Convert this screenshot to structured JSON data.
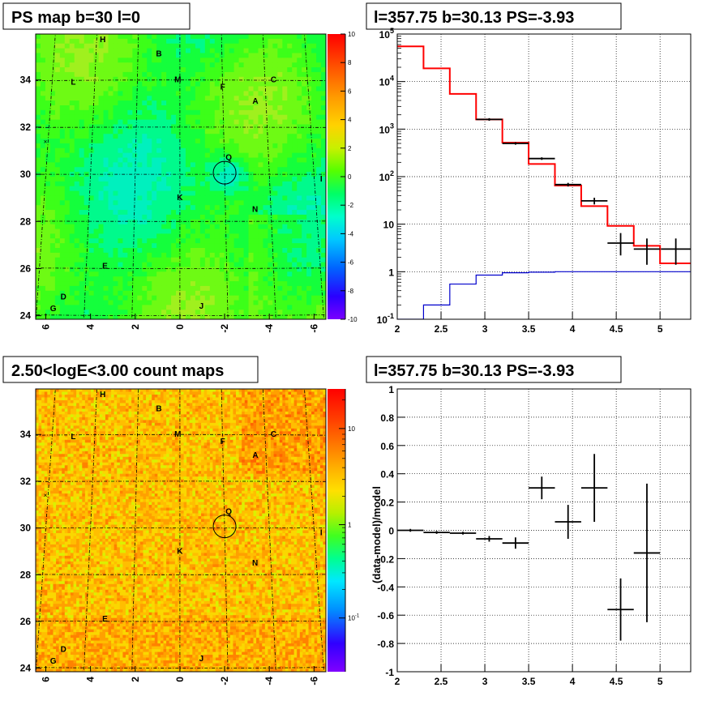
{
  "chart_data": [
    {
      "panel": "top-left",
      "type": "heatmap",
      "title": "PS map b=30 l=0",
      "x_ticks": [
        "6",
        "4",
        "2",
        "0",
        "-2",
        "-4",
        "-6"
      ],
      "y_ticks": [
        "24",
        "26",
        "28",
        "30",
        "32",
        "34"
      ],
      "colorbar_ticks": [
        "10",
        "8",
        "6",
        "4",
        "2",
        "0",
        "-2",
        "-4",
        "-6",
        "-8",
        "-10"
      ],
      "zlim": [
        -10,
        10
      ],
      "sources": [
        {
          "label": "H",
          "l": 3.7,
          "b": 35.6
        },
        {
          "label": "B",
          "l": 1.0,
          "b": 35.0
        },
        {
          "label": "L",
          "l": 5.0,
          "b": 33.8
        },
        {
          "label": "M",
          "l": 0.1,
          "b": 33.9
        },
        {
          "label": "F",
          "l": -2.0,
          "b": 33.6
        },
        {
          "label": "C",
          "l": -4.4,
          "b": 33.9
        },
        {
          "label": "A",
          "l": -3.5,
          "b": 33.0
        },
        {
          "label": "Q",
          "l": -2.2,
          "b": 30.6
        },
        {
          "label": "I",
          "l": -6.3,
          "b": 29.7
        },
        {
          "label": "K",
          "l": 0.0,
          "b": 28.9
        },
        {
          "label": "N",
          "l": -3.3,
          "b": 28.4
        },
        {
          "label": "E",
          "l": 3.2,
          "b": 26.0
        },
        {
          "label": "D",
          "l": 4.9,
          "b": 24.7
        },
        {
          "label": "J",
          "l": -0.9,
          "b": 24.3
        },
        {
          "label": "G",
          "l": 5.3,
          "b": 24.2
        }
      ],
      "circle": {
        "l": -2.0,
        "b": 30.0,
        "r": 0.5
      }
    },
    {
      "panel": "top-right",
      "type": "line",
      "title": "l=357.75 b=30.13 PS=-3.93",
      "x_ticks": [
        "2",
        "2.5",
        "3",
        "3.5",
        "4",
        "4.5",
        "5"
      ],
      "y_ticks": [
        "10^-1",
        "1",
        "10",
        "10^2",
        "10^3",
        "10^4",
        "10^5"
      ],
      "xlim": [
        2,
        5.35
      ],
      "ylim": [
        0.1,
        100000
      ],
      "y_scale": "log",
      "edges": [
        2.0,
        2.3,
        2.6,
        2.9,
        3.2,
        3.5,
        3.8,
        4.1,
        4.4,
        4.7,
        5.0,
        5.35
      ],
      "series": [
        {
          "name": "",
          "color": "#ff0000",
          "type": "step",
          "values": [
            55000,
            19000,
            5500,
            1600,
            520,
            185,
            65,
            24,
            9.2,
            3.5,
            1.5
          ]
        },
        {
          "name": "",
          "color": "#0000cc",
          "type": "step",
          "values": [
            0.1,
            0.2,
            0.55,
            0.85,
            0.95,
            0.98,
            1.0,
            1.0,
            1.0,
            1.0,
            1.0
          ]
        },
        {
          "name": "",
          "color": "#000000",
          "type": "errorbar",
          "x": [
            3.05,
            3.35,
            3.65,
            3.95,
            4.25,
            4.55,
            4.85,
            5.18
          ],
          "xerr": [
            0.15,
            0.15,
            0.15,
            0.15,
            0.15,
            0.15,
            0.15,
            0.17
          ],
          "y": [
            1600,
            500,
            240,
            68,
            31,
            4.0,
            3.0,
            3.0
          ],
          "ylo": [
            1500,
            470,
            225,
            62,
            26,
            2.2,
            1.4,
            1.4
          ],
          "yhi": [
            1700,
            530,
            255,
            74,
            36,
            6.5,
            5.0,
            5.0
          ]
        }
      ]
    },
    {
      "panel": "bottom-left",
      "type": "heatmap",
      "title": "2.50<logE<3.00 count maps",
      "x_ticks": [
        "6",
        "4",
        "2",
        "0",
        "-2",
        "-4",
        "-6"
      ],
      "y_ticks": [
        "24",
        "26",
        "28",
        "30",
        "32",
        "34"
      ],
      "colorbar_ticks": [
        "10",
        "1",
        "10^-1"
      ],
      "z_scale": "log"
    },
    {
      "panel": "bottom-right",
      "type": "scatter",
      "title": "l=357.75 b=30.13 PS=-3.93",
      "ylabel": "(data-model)/model",
      "x_ticks": [
        "2",
        "2.5",
        "3",
        "3.5",
        "4",
        "4.5",
        "5"
      ],
      "y_ticks": [
        "-1",
        "-0.8",
        "-0.6",
        "-0.4",
        "-0.2",
        "0",
        "0.2",
        "0.4",
        "0.6",
        "0.8",
        "1"
      ],
      "xlim": [
        2,
        5.35
      ],
      "ylim": [
        -1,
        1
      ],
      "points": [
        {
          "x": 2.15,
          "xerr": 0.15,
          "y": 0.0,
          "yerr": 0.01
        },
        {
          "x": 2.45,
          "xerr": 0.15,
          "y": -0.015,
          "yerr": 0.01
        },
        {
          "x": 2.75,
          "xerr": 0.15,
          "y": -0.02,
          "yerr": 0.01
        },
        {
          "x": 3.05,
          "xerr": 0.15,
          "y": -0.06,
          "yerr": 0.02
        },
        {
          "x": 3.35,
          "xerr": 0.15,
          "y": -0.09,
          "yerr": 0.04
        },
        {
          "x": 3.65,
          "xerr": 0.15,
          "y": 0.3,
          "yerr": 0.08
        },
        {
          "x": 3.95,
          "xerr": 0.15,
          "y": 0.06,
          "yerr": 0.12
        },
        {
          "x": 4.25,
          "xerr": 0.15,
          "y": 0.3,
          "yerr": 0.24
        },
        {
          "x": 4.55,
          "xerr": 0.15,
          "y": -0.56,
          "yerr": 0.22
        },
        {
          "x": 4.85,
          "xerr": 0.15,
          "y": -0.16,
          "yerr": 0.49
        }
      ]
    }
  ]
}
